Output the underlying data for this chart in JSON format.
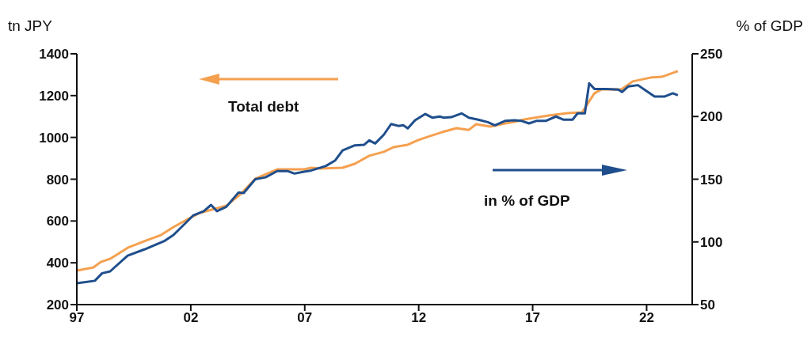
{
  "chart_data": {
    "type": "line",
    "ylabel": "tn JPY",
    "y2label": "% of GDP",
    "annotations": [
      "Total debt",
      "in % of GDP"
    ],
    "xlim": [
      1997,
      2024
    ],
    "xticks": [
      {
        "value": 1997,
        "label": "97"
      },
      {
        "value": 2002,
        "label": "02"
      },
      {
        "value": 2007,
        "label": "07"
      },
      {
        "value": 2012,
        "label": "12"
      },
      {
        "value": 2017,
        "label": "17"
      },
      {
        "value": 2022,
        "label": "22"
      }
    ],
    "ylim": [
      200,
      1400
    ],
    "yticks": [
      200,
      400,
      600,
      800,
      1000,
      1200,
      1400
    ],
    "y2lim": [
      50,
      250
    ],
    "y2ticks": [
      50,
      100,
      150,
      200,
      250
    ],
    "grid": false,
    "legend": false,
    "marker": "none",
    "line_style": "solid",
    "series": [
      {
        "color": "#f5a04f",
        "x": [
          1997.0,
          1997.73,
          1998.05,
          1998.46,
          1999.23,
          1999.96,
          2000.69,
          2001.24,
          2001.87,
          2002.41,
          2002.92,
          2003.56,
          2004.2,
          2004.83,
          2005.79,
          2006.97,
          2007.29,
          2007.7,
          2008.66,
          2009.2,
          2009.83,
          2010.47,
          2010.89,
          2011.52,
          2011.97,
          2012.48,
          2013.02,
          2013.66,
          2014.2,
          2014.52,
          2015.15,
          2015.79,
          2016.2,
          2016.62,
          2017.7,
          2018.53,
          2019.17,
          2019.71,
          2020.03,
          2020.89,
          2021.39,
          2022.16,
          2022.67,
          2023.37
        ],
        "values": [
          363,
          378,
          404,
          419,
          472,
          503,
          533,
          571,
          609,
          639,
          654,
          673,
          730,
          802,
          847,
          847,
          855,
          851,
          855,
          874,
          912,
          931,
          953,
          965,
          987,
          1006,
          1025,
          1044,
          1036,
          1063,
          1052,
          1067,
          1074,
          1086,
          1105,
          1116,
          1120,
          1211,
          1230,
          1230,
          1268,
          1286,
          1290,
          1317
        ]
      },
      {
        "color": "#1f4e8c",
        "axis": "y2",
        "x": [
          1997.0,
          1997.79,
          1998.11,
          1998.46,
          1999.23,
          1999.96,
          2000.82,
          2001.24,
          2002.1,
          2002.57,
          2002.89,
          2003.15,
          2003.56,
          2004.1,
          2004.32,
          2004.83,
          2005.28,
          2005.79,
          2006.24,
          2006.55,
          2006.97,
          2007.29,
          2007.92,
          2008.34,
          2008.66,
          2009.2,
          2009.61,
          2009.83,
          2010.09,
          2010.47,
          2010.79,
          2011.11,
          2011.33,
          2011.52,
          2011.84,
          2012.29,
          2012.61,
          2012.92,
          2013.11,
          2013.43,
          2013.88,
          2014.2,
          2014.61,
          2015.03,
          2015.34,
          2015.79,
          2016.2,
          2016.52,
          2016.84,
          2017.16,
          2017.57,
          2018.02,
          2018.34,
          2018.75,
          2018.97,
          2019.29,
          2019.48,
          2019.71,
          2020.25,
          2020.76,
          2020.92,
          2021.2,
          2021.62,
          2021.94,
          2022.35,
          2022.8,
          2023.15,
          2023.37
        ],
        "values": [
          67,
          69,
          75,
          76.5,
          89,
          94,
          100.5,
          105.5,
          121,
          124.5,
          129.5,
          124.5,
          128,
          139.5,
          139,
          150,
          151.5,
          156.5,
          156.5,
          154.5,
          156,
          157,
          160.5,
          165,
          173,
          177,
          177.5,
          181,
          178.5,
          185.5,
          194,
          192.5,
          193,
          190.5,
          197,
          202,
          199,
          200,
          199,
          199.5,
          202.5,
          199,
          197.5,
          195.5,
          193,
          196.5,
          197,
          196.5,
          194.5,
          196.5,
          196.5,
          200,
          197.5,
          197.5,
          202.5,
          202.5,
          226.5,
          222,
          222,
          221.5,
          219.5,
          224,
          225,
          221,
          216,
          216,
          218.5,
          217
        ]
      }
    ]
  }
}
